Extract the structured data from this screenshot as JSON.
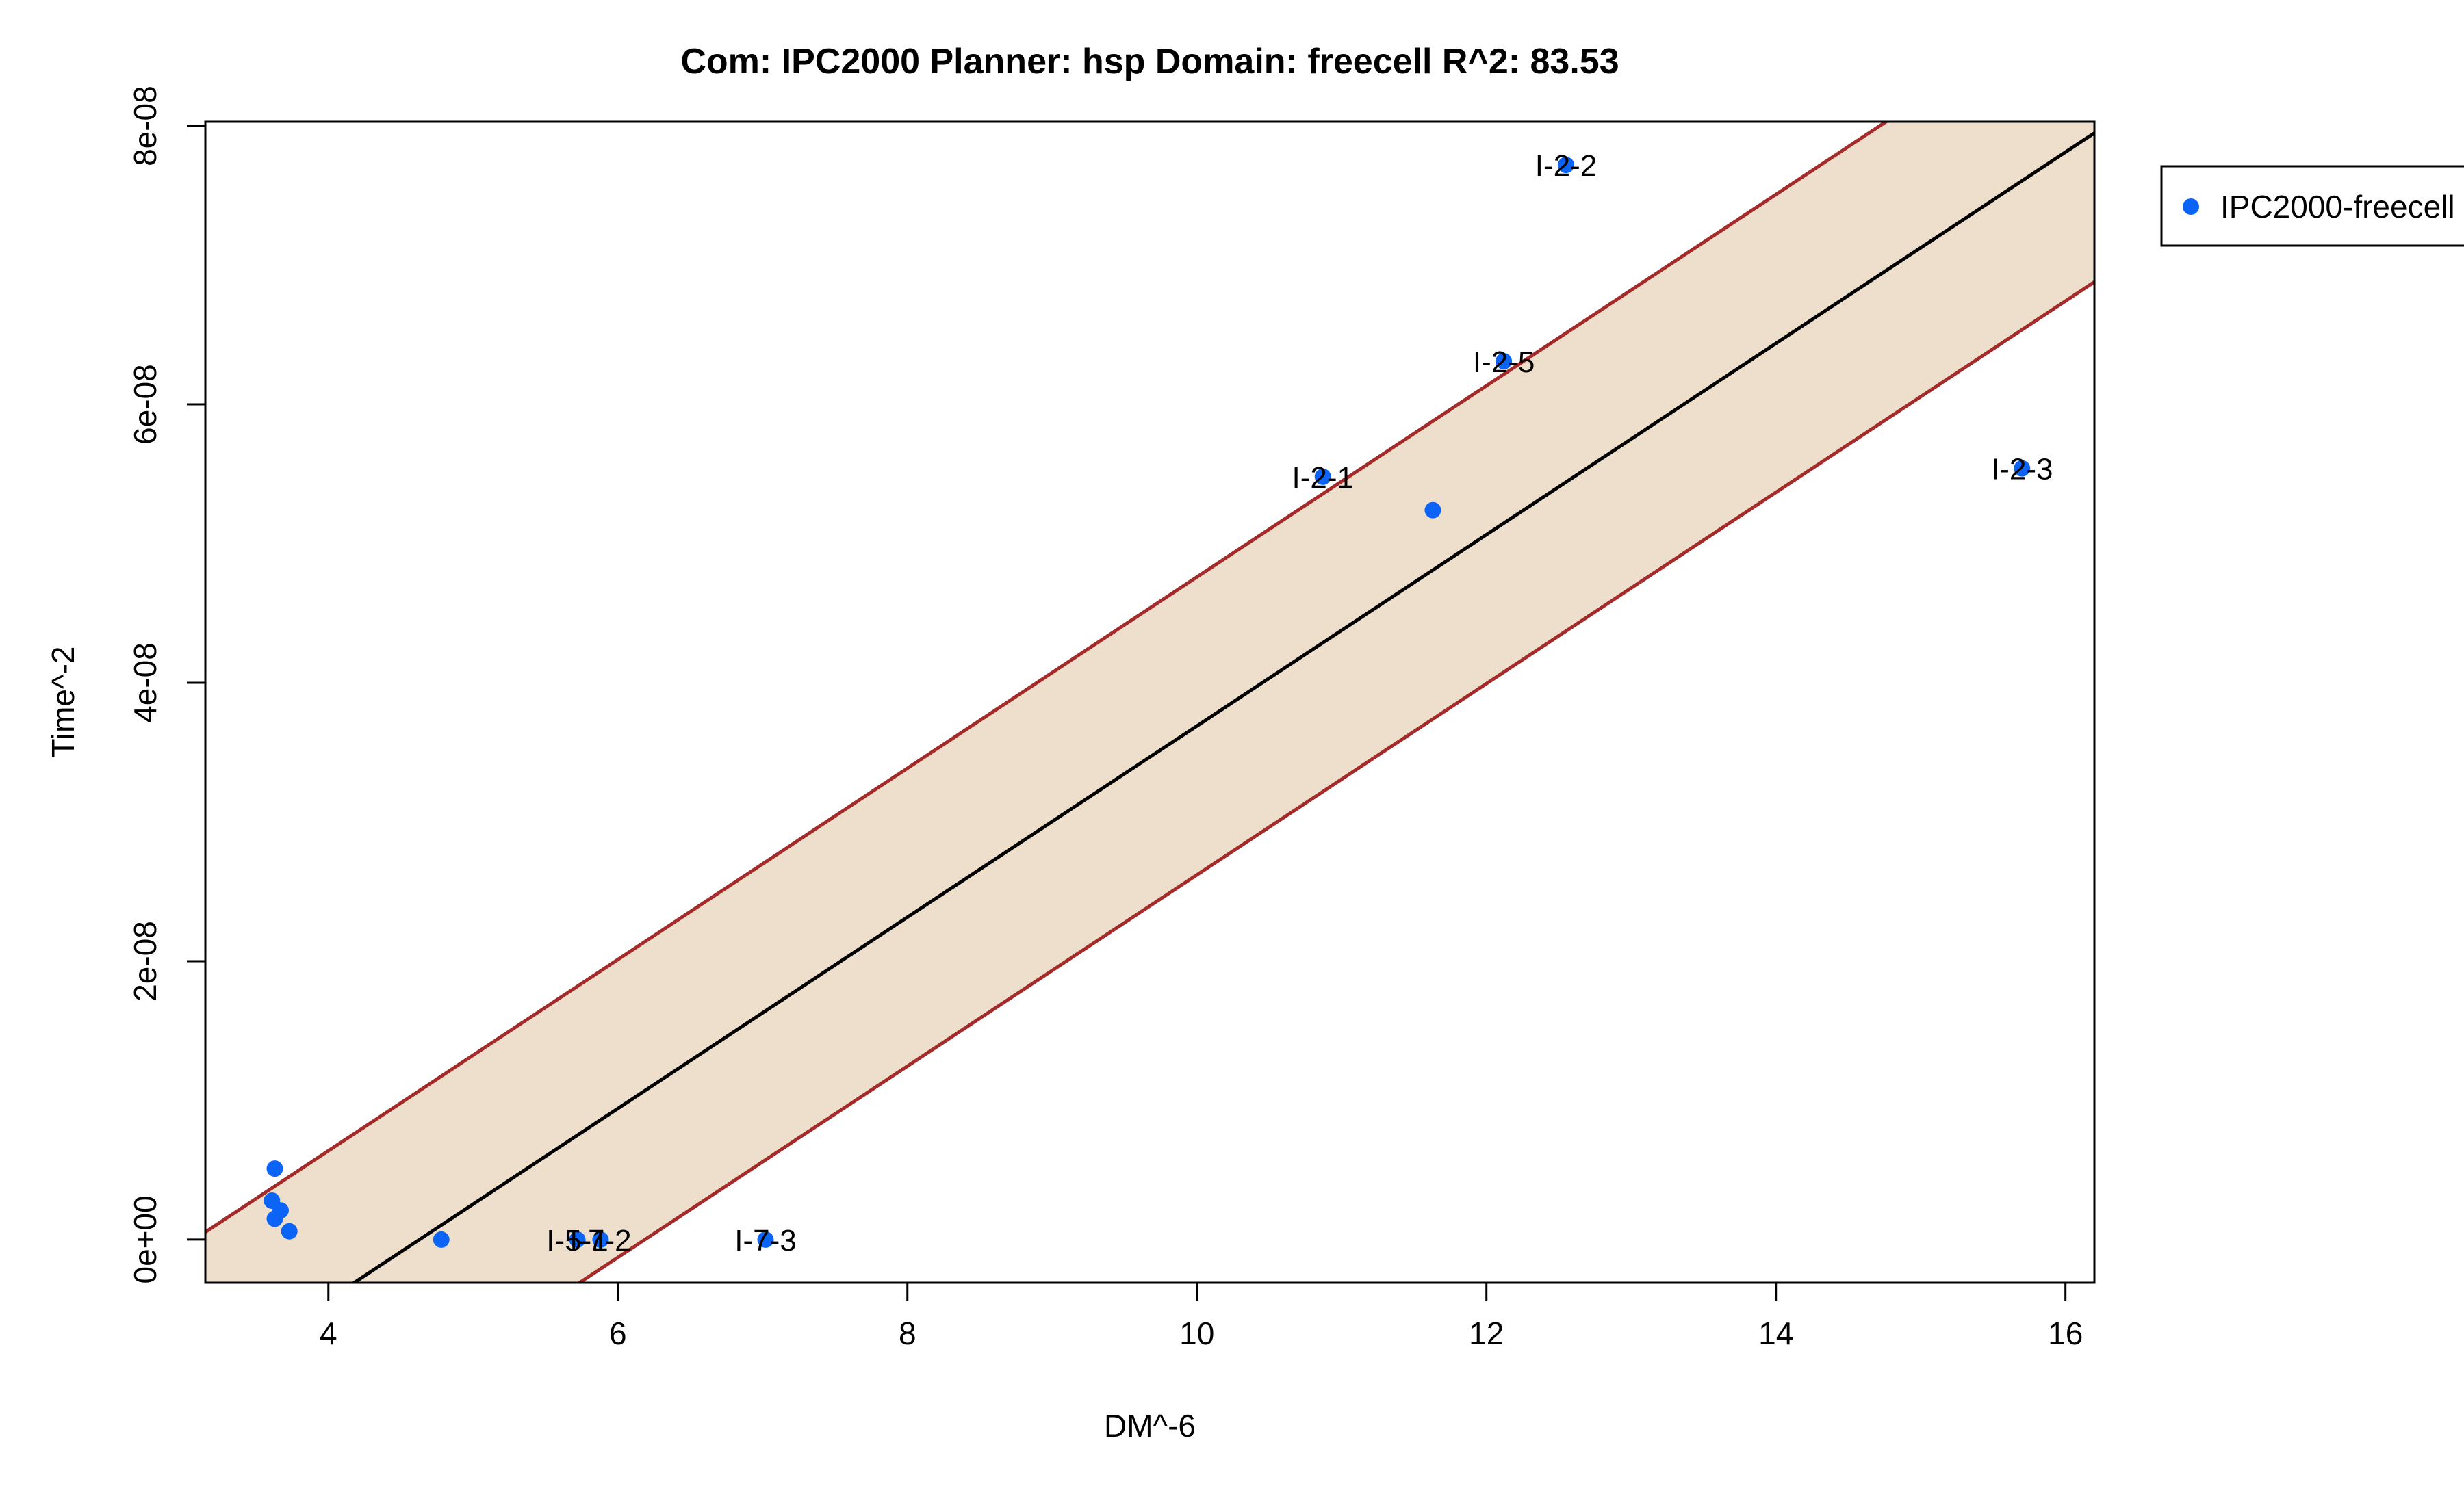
{
  "chart_data": {
    "type": "scatter",
    "title": "Com: IPC2000 Planner: hsp Domain: freecell R^2: 83.53",
    "xlabel": "DM^-6",
    "ylabel": "Time^-2",
    "xlim": [
      3.15,
      16.2
    ],
    "ylim": [
      -3.1e-09,
      8.03e-08
    ],
    "x_ticks": [
      {
        "value": 4,
        "label": "4"
      },
      {
        "value": 6,
        "label": "6"
      },
      {
        "value": 8,
        "label": "8"
      },
      {
        "value": 10,
        "label": "10"
      },
      {
        "value": 12,
        "label": "12"
      },
      {
        "value": 14,
        "label": "14"
      },
      {
        "value": 16,
        "label": "16"
      }
    ],
    "y_ticks": [
      {
        "value": 0,
        "label": "0e+00"
      },
      {
        "value": 2e-08,
        "label": "2e-08"
      },
      {
        "value": 4e-08,
        "label": "4e-08"
      },
      {
        "value": 6e-08,
        "label": "6e-08"
      },
      {
        "value": 8e-08,
        "label": "8e-08"
      }
    ],
    "fit": {
      "intercept": -3.18e-08,
      "slope": 6.87e-09,
      "band": 1.07e-08
    },
    "series": [
      {
        "name": "IPC2000-freecell",
        "color": "#0b64f5",
        "points": [
          {
            "x": 12.55,
            "y": 7.72e-08,
            "label": "I-2-2"
          },
          {
            "x": 12.12,
            "y": 6.31e-08,
            "label": "I-2-5"
          },
          {
            "x": 10.87,
            "y": 5.48e-08,
            "label": "I-2-1"
          },
          {
            "x": 11.63,
            "y": 5.24e-08,
            "label": ""
          },
          {
            "x": 15.7,
            "y": 5.54e-08,
            "label": "I-2-3"
          },
          {
            "x": 3.63,
            "y": 5.1e-09,
            "label": ""
          },
          {
            "x": 3.61,
            "y": 2.8e-09,
            "label": ""
          },
          {
            "x": 3.67,
            "y": 2.1e-09,
            "label": ""
          },
          {
            "x": 3.63,
            "y": 1.5e-09,
            "label": ""
          },
          {
            "x": 3.73,
            "y": 6e-10,
            "label": ""
          },
          {
            "x": 4.78,
            "y": 0,
            "label": ""
          },
          {
            "x": 5.72,
            "y": 0,
            "label": "I-5-1"
          },
          {
            "x": 5.88,
            "y": 0,
            "label": "I-7-2"
          },
          {
            "x": 7.02,
            "y": 0,
            "label": "I-7-3"
          }
        ]
      }
    ],
    "legend": {
      "position": "top-right-outside",
      "entries": [
        "IPC2000-freecell"
      ]
    },
    "colors": {
      "band_fill": "#eedfcc",
      "band_line": "#a52a2a",
      "fit_line": "#000000",
      "point": "#0b64f5"
    }
  }
}
